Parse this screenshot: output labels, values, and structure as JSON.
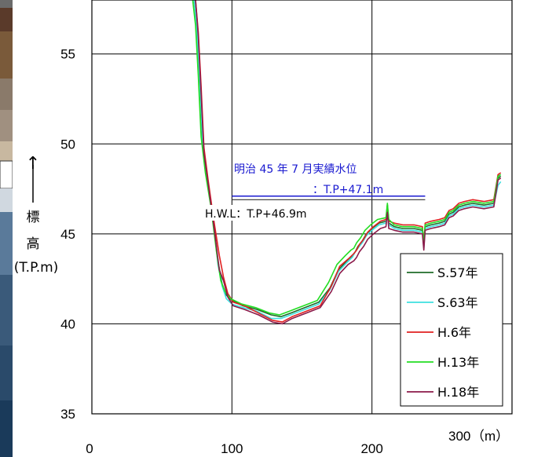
{
  "colors": {
    "s57": "#1f6b2a",
    "s63": "#3ee0e0",
    "h6": "#e02020",
    "h13": "#22dd22",
    "h18": "#8b1a4a",
    "record": "#1a1ad0",
    "hwl": "#333333"
  },
  "chart_data": {
    "type": "line",
    "xlabel": "（m）",
    "ylabel": [
      "標",
      "高"
    ],
    "ylabel_unit": "(T.P.m)",
    "xlim": [
      0,
      300
    ],
    "ylim": [
      35,
      58
    ],
    "x_ticks": [
      0,
      100,
      200
    ],
    "x_tick_labels": [
      "0",
      "100",
      "200"
    ],
    "x_last_label": "300",
    "y_ticks": [
      35,
      40,
      45,
      50,
      55
    ],
    "y_tick_labels": [
      "35",
      "40",
      "45",
      "50",
      "55"
    ],
    "grid": true,
    "legend_position": "right",
    "annotations": {
      "record_line1": "明治 45 年 7 月実績水位",
      "record_line2": "：T.P+47.1m",
      "record_level": 47.1,
      "hwl_text": "H.W.L：T.P+46.9m",
      "hwl_level": 46.9
    },
    "series": [
      {
        "name": "S.57年",
        "color_key": "s57",
        "x": [
          73,
          75,
          77,
          79,
          82,
          86,
          90,
          93,
          96,
          100,
          108,
          118,
          128,
          135,
          142,
          152,
          162,
          170,
          176,
          182,
          186,
          188,
          190,
          193,
          196,
          200,
          205,
          210,
          211,
          212,
          216,
          222,
          230,
          236,
          237,
          238,
          242,
          248,
          252,
          255,
          258,
          262,
          266,
          272,
          280,
          287,
          290,
          292
        ],
        "y": [
          58,
          56.5,
          53.5,
          50,
          48.2,
          46.2,
          43.5,
          42.2,
          41.6,
          41.3,
          41,
          40.8,
          40.5,
          40.4,
          40.6,
          40.9,
          41.2,
          42,
          43,
          43.5,
          43.8,
          44,
          44.3,
          44.6,
          45,
          45.3,
          45.6,
          45.7,
          46.6,
          45.6,
          45.4,
          45.3,
          45.3,
          45.2,
          44.3,
          45.4,
          45.5,
          45.6,
          45.7,
          46.1,
          46.2,
          46.5,
          46.6,
          46.7,
          46.6,
          46.7,
          48.1,
          48.2
        ]
      },
      {
        "name": "S.63年",
        "color_key": "s63",
        "x": [
          73,
          75,
          77,
          79,
          82,
          86,
          90,
          93,
          96,
          100,
          108,
          118,
          128,
          135,
          142,
          152,
          162,
          170,
          176,
          182,
          186,
          188,
          190,
          193,
          196,
          200,
          205,
          210,
          211,
          212,
          216,
          222,
          230,
          236,
          237,
          238,
          242,
          248,
          252,
          255,
          258,
          262,
          266,
          272,
          280,
          287,
          290,
          292
        ],
        "y": [
          58,
          56.3,
          53.6,
          50.2,
          48.1,
          46.3,
          43.3,
          42.1,
          41.4,
          41.1,
          40.9,
          40.7,
          40.3,
          40.3,
          40.5,
          40.8,
          41.1,
          41.9,
          42.9,
          43.4,
          43.7,
          44,
          44.2,
          44.5,
          44.9,
          45.2,
          45.5,
          45.6,
          46.5,
          45.5,
          45.3,
          45.2,
          45.2,
          45.1,
          44.2,
          45.3,
          45.4,
          45.5,
          45.6,
          46,
          46.1,
          46.4,
          46.5,
          46.6,
          46.5,
          46.6,
          47.7,
          47.9
        ]
      },
      {
        "name": "H.6年",
        "color_key": "h6",
        "x": [
          74,
          76,
          78,
          80,
          83,
          87,
          91,
          94,
          97,
          101,
          109,
          119,
          129,
          136,
          143,
          153,
          163,
          171,
          177,
          183,
          187,
          189,
          191,
          194,
          197,
          201,
          206,
          210,
          211,
          212,
          216,
          222,
          230,
          236,
          237,
          238,
          242,
          248,
          252,
          255,
          258,
          262,
          266,
          272,
          280,
          287,
          290,
          292
        ],
        "y": [
          58,
          56.2,
          53.2,
          49.8,
          48,
          45.8,
          43.8,
          42.6,
          41.7,
          41.2,
          41,
          40.6,
          40.2,
          40.1,
          40.4,
          40.7,
          41,
          42.1,
          43.2,
          43.6,
          43.9,
          44.1,
          44.4,
          44.7,
          45.1,
          45.4,
          45.7,
          45.8,
          46.6,
          45.7,
          45.6,
          45.5,
          45.5,
          45.4,
          44.4,
          45.6,
          45.7,
          45.8,
          45.9,
          46.3,
          46.4,
          46.7,
          46.8,
          46.9,
          46.8,
          46.9,
          48.3,
          48.4
        ]
      },
      {
        "name": "H.13年",
        "color_key": "h13",
        "x": [
          72,
          74,
          76,
          78,
          81,
          85,
          89,
          92,
          95,
          99,
          107,
          117,
          127,
          134,
          141,
          151,
          161,
          169,
          175,
          181,
          185,
          187,
          189,
          192,
          195,
          199,
          204,
          210,
          211,
          212,
          216,
          222,
          230,
          236,
          237,
          238,
          242,
          248,
          252,
          255,
          258,
          262,
          266,
          272,
          280,
          287,
          290,
          292
        ],
        "y": [
          58,
          56.6,
          53.8,
          50.4,
          48.4,
          46.5,
          44,
          42.4,
          41.8,
          41.4,
          41.1,
          40.9,
          40.6,
          40.5,
          40.7,
          41,
          41.3,
          42.3,
          43.3,
          43.8,
          44.1,
          44.2,
          44.5,
          44.8,
          45.2,
          45.5,
          45.8,
          45.9,
          46.7,
          45.8,
          45.5,
          45.4,
          45.4,
          45.3,
          44.5,
          45.5,
          45.6,
          45.7,
          45.8,
          46.2,
          46.3,
          46.6,
          46.7,
          46.8,
          46.7,
          46.8,
          48.2,
          48.3
        ]
      },
      {
        "name": "H.18年",
        "color_key": "h18",
        "x": [
          74,
          76,
          78,
          80,
          83,
          87,
          91,
          94,
          97,
          101,
          109,
          119,
          129,
          136,
          143,
          153,
          163,
          171,
          177,
          183,
          187,
          189,
          191,
          194,
          197,
          201,
          206,
          210,
          211,
          212,
          216,
          222,
          230,
          236,
          237,
          238,
          242,
          248,
          252,
          255,
          258,
          262,
          266,
          272,
          280,
          287,
          290,
          292
        ],
        "y": [
          58,
          56,
          52.8,
          49.5,
          47.8,
          45.5,
          43,
          42.4,
          41.5,
          41,
          40.8,
          40.5,
          40.1,
          40,
          40.3,
          40.6,
          40.9,
          41.8,
          42.8,
          43.3,
          43.5,
          43.7,
          44,
          44.3,
          44.7,
          45,
          45.3,
          45.4,
          46.2,
          45.3,
          45.2,
          45.1,
          45.1,
          45,
          44.1,
          45.2,
          45.3,
          45.4,
          45.5,
          45.9,
          46,
          46.3,
          46.4,
          46.5,
          46.4,
          46.5,
          48,
          48.1
        ]
      }
    ]
  }
}
